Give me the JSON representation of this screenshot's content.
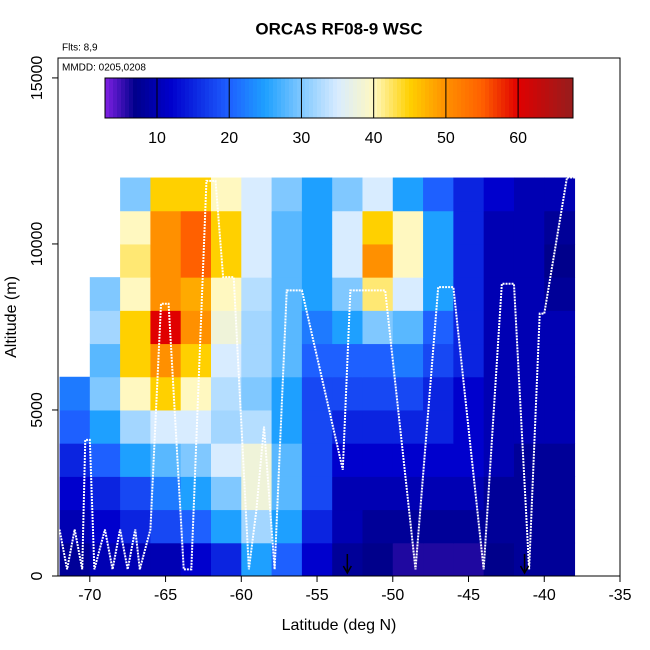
{
  "chart_data": {
    "type": "heatmap",
    "title": "ORCAS RF08-9 WSC",
    "flights_note": "Flts: 8,9",
    "dates_note": "MMDD: 0205,0208",
    "x_label": "Latitude (deg N)",
    "y_label": "Altitude (m)",
    "xlim": [
      -72.1,
      -35
    ],
    "ylim": [
      0,
      15600
    ],
    "xticks": [
      -70,
      -65,
      -60,
      -55,
      -50,
      -45,
      -40,
      -35
    ],
    "yticks": [
      0,
      5000,
      10000,
      15000
    ],
    "x": [
      -71,
      -69,
      -67,
      -65,
      -63,
      -61,
      -59,
      -57,
      -55,
      -53,
      -51,
      -49,
      -47,
      -45,
      -43,
      -41,
      -39
    ],
    "y": [
      500,
      1500,
      2500,
      3500,
      4500,
      5500,
      6500,
      7500,
      8500,
      9500,
      10500,
      11500
    ],
    "z": [
      [
        8,
        10,
        10,
        10,
        12,
        15,
        25,
        20,
        12,
        8,
        7,
        6,
        6,
        6,
        7,
        8,
        8
      ],
      [
        10,
        12,
        15,
        18,
        20,
        25,
        32,
        25,
        15,
        10,
        8,
        8,
        8,
        8,
        8,
        8,
        8
      ],
      [
        12,
        15,
        18,
        22,
        25,
        30,
        38,
        28,
        18,
        10,
        10,
        10,
        10,
        10,
        8,
        8,
        8
      ],
      [
        15,
        20,
        25,
        28,
        30,
        35,
        38,
        28,
        18,
        12,
        12,
        12,
        12,
        12,
        10,
        8,
        8
      ],
      [
        20,
        25,
        32,
        35,
        35,
        32,
        33,
        25,
        18,
        15,
        15,
        15,
        15,
        12,
        10,
        10,
        10
      ],
      [
        22,
        30,
        40,
        45,
        40,
        33,
        30,
        25,
        18,
        18,
        18,
        18,
        15,
        12,
        10,
        10,
        10
      ],
      [
        null,
        28,
        45,
        50,
        45,
        35,
        32,
        28,
        20,
        20,
        20,
        22,
        18,
        15,
        10,
        10,
        10
      ],
      [
        null,
        32,
        45,
        60,
        50,
        38,
        32,
        28,
        22,
        25,
        30,
        28,
        20,
        15,
        10,
        10,
        10
      ],
      [
        null,
        30,
        40,
        50,
        48,
        40,
        33,
        28,
        25,
        30,
        42,
        35,
        25,
        15,
        10,
        10,
        8
      ],
      [
        null,
        null,
        42,
        50,
        55,
        45,
        35,
        28,
        25,
        35,
        50,
        40,
        25,
        15,
        10,
        10,
        7
      ],
      [
        null,
        null,
        40,
        50,
        55,
        45,
        35,
        28,
        25,
        35,
        45,
        40,
        25,
        15,
        10,
        10,
        8
      ],
      [
        null,
        null,
        30,
        45,
        45,
        40,
        35,
        30,
        25,
        30,
        35,
        25,
        20,
        15,
        12,
        10,
        10
      ]
    ],
    "clim": [
      2.8,
      67.6
    ],
    "cticks": [
      10,
      20,
      30,
      40,
      50,
      60
    ],
    "colorscale": [
      {
        "value": 3,
        "color": "#7a1fe0"
      },
      {
        "value": 7,
        "color": "#00008b"
      },
      {
        "value": 12,
        "color": "#0000cd"
      },
      {
        "value": 20,
        "color": "#1e60ff"
      },
      {
        "value": 25,
        "color": "#1ea0ff"
      },
      {
        "value": 30,
        "color": "#80c8ff"
      },
      {
        "value": 35,
        "color": "#d8ecff"
      },
      {
        "value": 40,
        "color": "#fff8c0"
      },
      {
        "value": 45,
        "color": "#ffd000"
      },
      {
        "value": 50,
        "color": "#ff9000"
      },
      {
        "value": 55,
        "color": "#ff6000"
      },
      {
        "value": 60,
        "color": "#e00000"
      },
      {
        "value": 67,
        "color": "#9b1b1b"
      }
    ],
    "track": {
      "color": "#ffffff",
      "lat": [
        -72,
        -71.5,
        -71,
        -70.5,
        -70.3,
        -70,
        -69.7,
        -69,
        -68.5,
        -68,
        -67.5,
        -67,
        -66.7,
        -66,
        -65.3,
        -64.8,
        -63.8,
        -63.3,
        -62.3,
        -61.7,
        -61.2,
        -60.5,
        -59.5,
        -59,
        -58.5,
        -57.8,
        -57,
        -56,
        -53.3,
        -52.8,
        -52.5,
        -50.5,
        -48.5,
        -47,
        -46,
        -44,
        -42.8,
        -42,
        -41,
        -40.3,
        -40,
        -38.5,
        -37
      ],
      "alt": [
        1400,
        200,
        1400,
        200,
        4100,
        4100,
        200,
        1400,
        200,
        1400,
        200,
        1400,
        200,
        1400,
        8200,
        8200,
        200,
        200,
        11900,
        11900,
        9000,
        9000,
        200,
        2000,
        4500,
        200,
        8600,
        8600,
        3200,
        8600,
        8600,
        8600,
        200,
        8700,
        8700,
        200,
        8800,
        8800,
        200,
        7900,
        7900,
        12000,
        12000
      ]
    },
    "arrows_lat": [
      -53,
      -41.3
    ]
  }
}
